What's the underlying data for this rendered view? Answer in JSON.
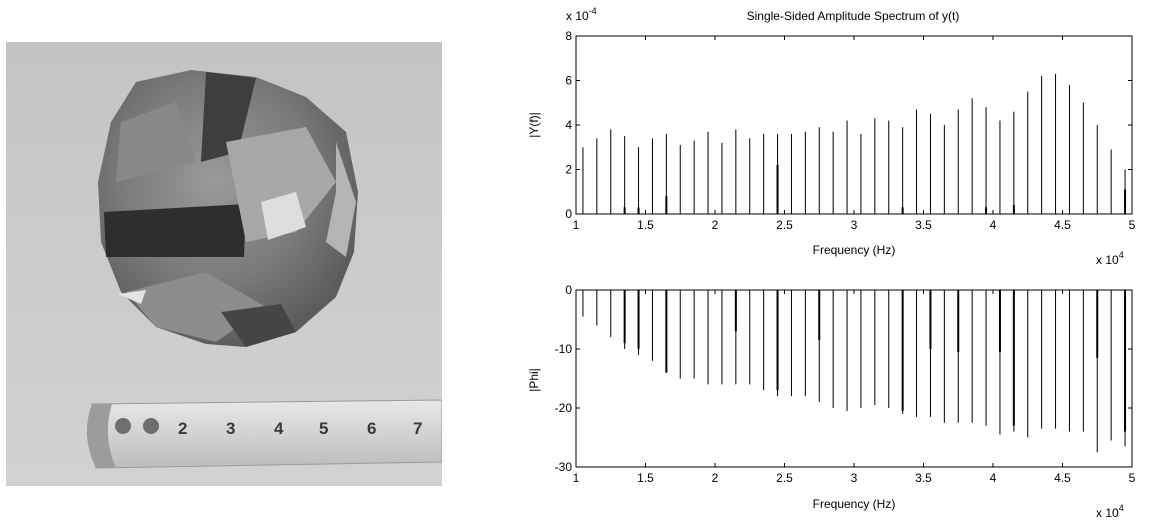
{
  "photo": {
    "tape_numbers": [
      "2",
      "3",
      "4",
      "5",
      "6",
      "7"
    ]
  },
  "chart_data": [
    {
      "type": "stem",
      "title": "Single-Sided Amplitude Spectrum of y(t)",
      "xlabel": "Frequency (Hz)",
      "ylabel": "|Y(f)|",
      "x_multiplier": "x 10",
      "x_exponent": "4",
      "y_multiplier": "x 10",
      "y_exponent": "-4",
      "xlim": [
        1,
        5
      ],
      "ylim": [
        0,
        8
      ],
      "xticks": [
        "1",
        "1.5",
        "2",
        "2.5",
        "3",
        "3.5",
        "4",
        "4.5",
        "5"
      ],
      "yticks": [
        "0",
        "2",
        "4",
        "6",
        "8"
      ],
      "series": [
        {
          "x": [
            1.05,
            1.15,
            1.25,
            1.35,
            1.45,
            1.55,
            1.65,
            1.75,
            1.85,
            1.95,
            2.05,
            2.15,
            2.25,
            2.35,
            2.45,
            2.55,
            2.65,
            2.75,
            2.85,
            2.95,
            3.05,
            3.15,
            3.25,
            3.35,
            3.45,
            3.55,
            3.65,
            3.75,
            3.85,
            3.95,
            4.05,
            4.15,
            4.25,
            4.35,
            4.45,
            4.55,
            4.65,
            4.75,
            4.85,
            4.95
          ],
          "values": [
            3.0,
            3.4,
            3.8,
            3.5,
            3.0,
            3.4,
            3.6,
            3.1,
            3.3,
            3.7,
            3.2,
            3.8,
            3.4,
            3.6,
            3.6,
            3.6,
            3.7,
            3.9,
            3.7,
            4.2,
            3.6,
            4.3,
            4.2,
            3.9,
            4.7,
            4.5,
            4.0,
            4.7,
            5.2,
            4.8,
            4.2,
            4.6,
            5.5,
            6.2,
            6.3,
            5.8,
            5.0,
            4.0,
            2.9,
            2.0
          ]
        },
        {
          "x": [
            1.35,
            1.45,
            1.65,
            2.45,
            3.35,
            3.95,
            4.15,
            4.95
          ],
          "values": [
            0.3,
            0.3,
            0.8,
            2.2,
            0.3,
            0.3,
            0.4,
            1.1
          ]
        }
      ]
    },
    {
      "type": "stem",
      "title": "",
      "xlabel": "Frequency (Hz)",
      "ylabel": "|Phi|",
      "x_multiplier": "x 10",
      "x_exponent": "4",
      "xlim": [
        1,
        5
      ],
      "ylim": [
        -30,
        0
      ],
      "xticks": [
        "1",
        "1.5",
        "2",
        "2.5",
        "3",
        "3.5",
        "4",
        "4.5",
        "5"
      ],
      "yticks": [
        "-30",
        "-20",
        "-10",
        "0"
      ],
      "series": [
        {
          "x": [
            1.05,
            1.15,
            1.25,
            1.35,
            1.45,
            1.55,
            1.65,
            1.75,
            1.85,
            1.95,
            2.05,
            2.15,
            2.25,
            2.35,
            2.45,
            2.55,
            2.65,
            2.75,
            2.85,
            2.95,
            3.05,
            3.15,
            3.25,
            3.35,
            3.45,
            3.55,
            3.65,
            3.75,
            3.85,
            3.95,
            4.05,
            4.15,
            4.25,
            4.35,
            4.45,
            4.55,
            4.65,
            4.75,
            4.85,
            4.95
          ],
          "values": [
            -4.5,
            -6,
            -8,
            -10,
            -11,
            -12,
            -14,
            -15,
            -15,
            -16,
            -16,
            -16,
            -16,
            -17,
            -18,
            -18,
            -18,
            -19,
            -20,
            -20.5,
            -20,
            -19.5,
            -20,
            -21,
            -21.5,
            -21.5,
            -22.5,
            -22.5,
            -22.5,
            -23,
            -24.5,
            -24,
            -25,
            -23.5,
            -23.5,
            -24,
            -24,
            -27.5,
            -25.5,
            -26.5
          ]
        },
        {
          "x": [
            1.35,
            1.45,
            1.65,
            2.15,
            2.45,
            2.75,
            3.35,
            3.55,
            3.75,
            4.05,
            4.15,
            4.75,
            4.95
          ],
          "values": [
            -9,
            -10,
            -14,
            -7,
            -17,
            -8.5,
            -20.5,
            -10,
            -10.5,
            -10.5,
            -23,
            -11.5,
            -24
          ]
        }
      ]
    }
  ]
}
